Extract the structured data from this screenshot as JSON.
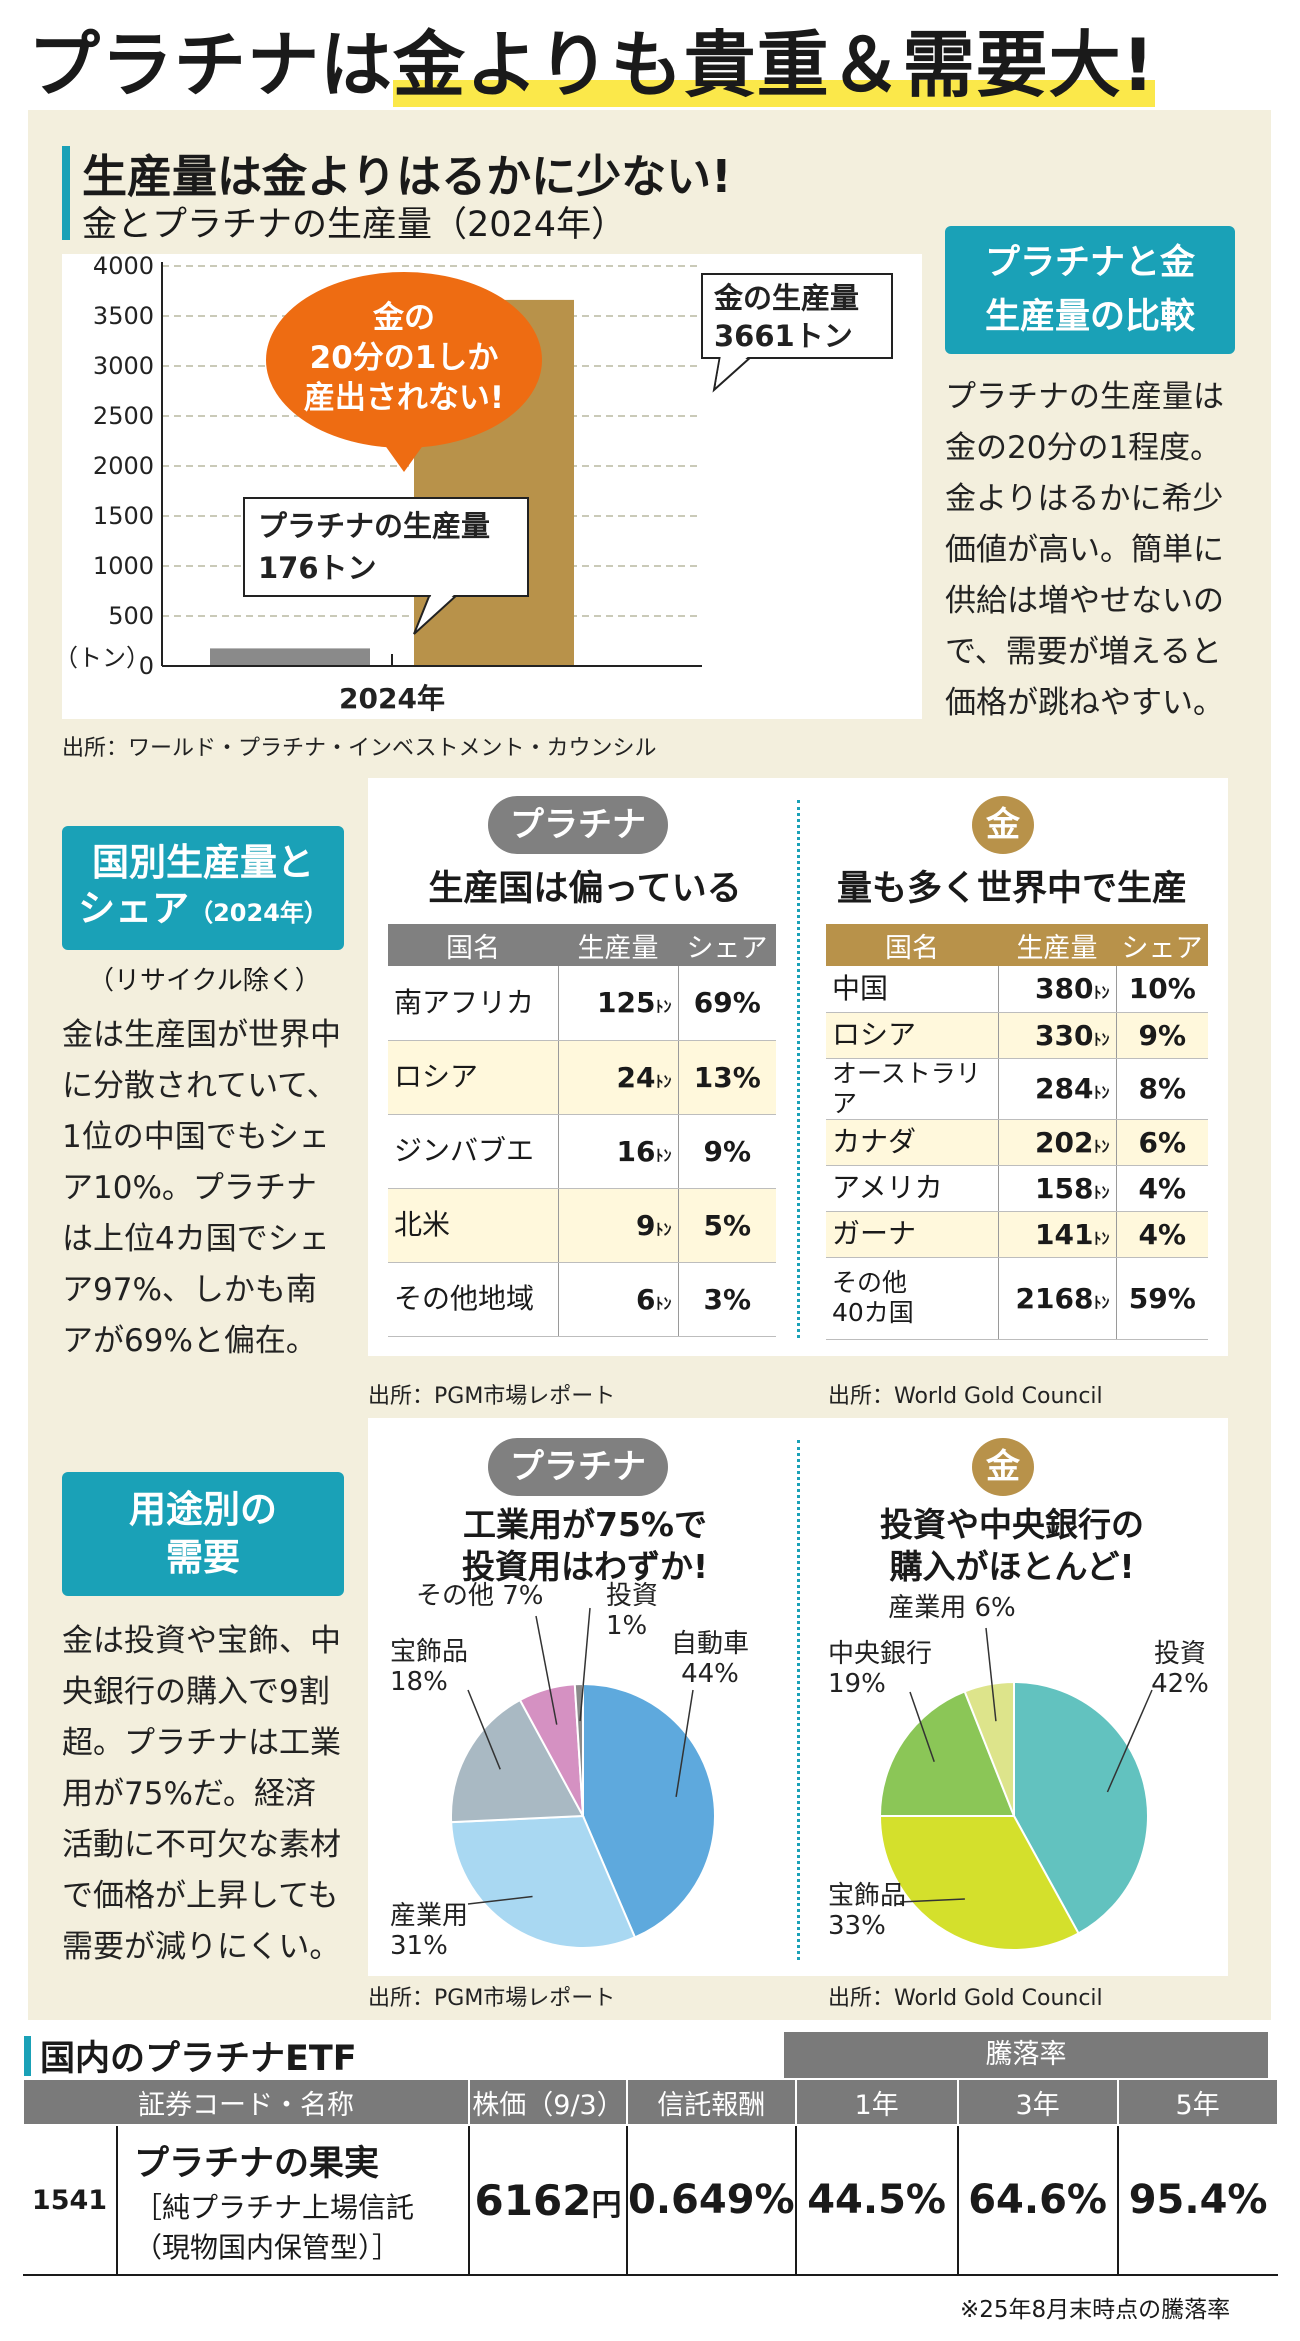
{
  "title": {
    "part1": "プラチナは",
    "part2": "金よりも貴重＆需要大!"
  },
  "production": {
    "heading": "生産量は金よりはるかに少ない!",
    "subheading": "金とプラチナの生産量（2024年）",
    "bubble": [
      "金の",
      "20分の1しか",
      "産出されない!"
    ],
    "plat_callout": [
      "プラチナの生産量",
      "176トン"
    ],
    "gold_callout": [
      "金の生産量",
      "3661トン"
    ],
    "source": "出所：ワールド・プラチナ・インベストメント・カウンシル",
    "side_heading": [
      "プラチナと金",
      "生産量の比較"
    ],
    "side_text": [
      "プラチナの生産量は",
      "金の20分の1程度。",
      "金よりはるかに希少",
      "価値が高い。簡単に",
      "供給は増やせないの",
      "で、需要が増えると",
      "価格が跳ねやすい。"
    ]
  },
  "country": {
    "side_heading_1": "国別生産量と",
    "side_heading_2": "シェア",
    "side_heading_year": "（2024年）",
    "note": "（リサイクル除く）",
    "side_text": [
      "金は生産国が世界中",
      "に分散されていて、",
      "1位の中国でもシェ",
      "ア10%。プラチナ",
      "は上位4カ国でシェ",
      "ア97%、しかも南",
      "アが69%と偏在。"
    ],
    "plat_pill": "プラチナ",
    "plat_heading": "生産国は偏っている",
    "gold_pill": "金",
    "gold_heading": "量も多く世界中で生産",
    "col_country": "国名",
    "col_prod": "生産量",
    "col_share": "シェア",
    "ton_unit": "ﾄﾝ",
    "source_plat": "出所：PGM市場レポート",
    "source_gold": "出所：World Gold Council"
  },
  "usage": {
    "side_heading": [
      "用途別の",
      "需要"
    ],
    "side_text": [
      "金は投資や宝飾、中",
      "央銀行の購入で9割",
      "超。プラチナは工業",
      "用が75%だ。経済",
      "活動に不可欠な素材",
      "で価格が上昇しても",
      "需要が減りにくい。"
    ],
    "plat_pill": "プラチナ",
    "plat_heading": [
      "工業用が75%で",
      "投資用はわずか!"
    ],
    "gold_pill": "金",
    "gold_heading": [
      "投資や中央銀行の",
      "購入がほとんど!"
    ],
    "source_plat": "出所：PGM市場レポート",
    "source_gold": "出所：World Gold Council"
  },
  "etf": {
    "heading": "国内のプラチナETF",
    "group_header": "騰落率",
    "col_code": "証券コード・名称",
    "col_price": "株価（9/3）",
    "col_fee": "信託報酬",
    "col_1y": "1年",
    "col_3y": "3年",
    "col_5y": "5年",
    "code": "1541",
    "name": "プラチナの果実",
    "name_sub1": "［純プラチナ上場信託",
    "name_sub2": "（現物国内保管型）］",
    "price": "6162",
    "price_unit": "円",
    "fee": "0.649%",
    "r1": "44.5%",
    "r3": "64.6%",
    "r5": "95.4%",
    "footnote": "※25年8月末時点の騰落率"
  },
  "colors": {
    "teal": "#1aa1b7",
    "gold": "#b8924a",
    "platinum_gray": "#808080",
    "orange": "#ee6c12",
    "highlight": "#fbe84a"
  },
  "chart_data": [
    {
      "type": "bar",
      "categories": [
        "2024年"
      ],
      "series": [
        {
          "name": "プラチナ",
          "values": [
            176
          ],
          "color": "#8a8a8a"
        },
        {
          "name": "金",
          "values": [
            3661
          ],
          "color": "#b8924a"
        }
      ],
      "xlabel": "2024年",
      "ylabel": "（トン）",
      "ylim": [
        0,
        4000
      ],
      "yticks": [
        0,
        500,
        1000,
        1500,
        2000,
        2500,
        3000,
        3500,
        4000
      ],
      "grid": true
    },
    {
      "type": "table",
      "columns": [
        "国名",
        "生産量",
        "シェア"
      ],
      "rows": [
        {
          "country": "南アフリカ",
          "production": "125",
          "share": "69%"
        },
        {
          "country": "ロシア",
          "production": "24",
          "share": "13%"
        },
        {
          "country": "ジンバブエ",
          "production": "16",
          "share": "9%"
        },
        {
          "country": "北米",
          "production": "9",
          "share": "5%"
        },
        {
          "country": "その他地域",
          "production": "6",
          "share": "3%"
        }
      ]
    },
    {
      "type": "table",
      "columns": [
        "国名",
        "生産量",
        "シェア"
      ],
      "rows": [
        {
          "country": "中国",
          "production": "380",
          "share": "10%"
        },
        {
          "country": "ロシア",
          "production": "330",
          "share": "9%"
        },
        {
          "country": "オーストラリア",
          "production": "284",
          "share": "8%"
        },
        {
          "country": "カナダ",
          "production": "202",
          "share": "6%"
        },
        {
          "country": "アメリカ",
          "production": "158",
          "share": "4%"
        },
        {
          "country": "ガーナ",
          "production": "141",
          "share": "4%"
        },
        {
          "country": "その他\n40カ国",
          "production": "2168",
          "share": "59%"
        }
      ]
    },
    {
      "type": "pie",
      "slices": [
        {
          "label": "自動車",
          "value": 44,
          "text": "44%",
          "color": "#5ea9dd"
        },
        {
          "label": "産業用",
          "value": 31,
          "text": "31%",
          "color": "#a9d8f2"
        },
        {
          "label": "宝飾品",
          "value": 18,
          "text": "18%",
          "color": "#a9b9c3"
        },
        {
          "label": "その他",
          "value": 7,
          "text": "7%",
          "color": "#d591c2"
        },
        {
          "label": "投資",
          "value": 1,
          "text": "1%",
          "color": "#8a8a8a"
        }
      ]
    },
    {
      "type": "pie",
      "slices": [
        {
          "label": "投資",
          "value": 42,
          "text": "42%",
          "color": "#62c2bf"
        },
        {
          "label": "宝飾品",
          "value": 33,
          "text": "33%",
          "color": "#d4e02c"
        },
        {
          "label": "中央銀行",
          "value": 19,
          "text": "19%",
          "color": "#8bc657"
        },
        {
          "label": "産業用",
          "value": 6,
          "text": "6%",
          "color": "#dde48b"
        }
      ]
    }
  ]
}
